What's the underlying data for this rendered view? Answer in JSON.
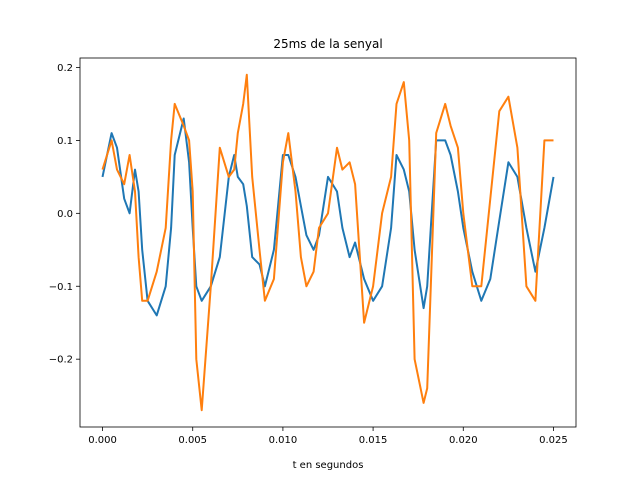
{
  "chart_data": {
    "type": "line",
    "title": "25ms de la senyal",
    "xlabel": "t en segundos",
    "ylabel": "",
    "xlim": [
      -0.00125,
      0.02625
    ],
    "ylim": [
      -0.293,
      0.213
    ],
    "x_ticks": [
      0.0,
      0.005,
      0.01,
      0.015,
      0.02,
      0.025
    ],
    "x_tick_labels": [
      "0.000",
      "0.005",
      "0.010",
      "0.015",
      "0.020",
      "0.025"
    ],
    "y_ticks": [
      -0.2,
      -0.1,
      0.0,
      0.1,
      0.2
    ],
    "y_tick_labels": [
      "−0.2",
      "−0.1",
      "0.0",
      "0.1",
      "0.2"
    ],
    "grid": false,
    "legend": "none",
    "series": [
      {
        "color": "#1f77b4",
        "x": [
          0.0,
          0.0005,
          0.0008,
          0.0012,
          0.0015,
          0.0018,
          0.002,
          0.0022,
          0.0025,
          0.003,
          0.0035,
          0.0038,
          0.004,
          0.0045,
          0.0048,
          0.005,
          0.0052,
          0.0055,
          0.006,
          0.0065,
          0.007,
          0.0073,
          0.0075,
          0.0078,
          0.008,
          0.0083,
          0.0087,
          0.009,
          0.0095,
          0.01,
          0.0103,
          0.0107,
          0.011,
          0.0113,
          0.0117,
          0.012,
          0.0125,
          0.013,
          0.0133,
          0.0137,
          0.014,
          0.0145,
          0.015,
          0.0155,
          0.016,
          0.0163,
          0.0167,
          0.017,
          0.0173,
          0.0178,
          0.018,
          0.0185,
          0.019,
          0.0193,
          0.0197,
          0.02,
          0.0205,
          0.021,
          0.0215,
          0.022,
          0.0225,
          0.023,
          0.0235,
          0.024,
          0.0245,
          0.025
        ],
        "values": [
          0.05,
          0.11,
          0.09,
          0.02,
          0.0,
          0.06,
          0.03,
          -0.05,
          -0.12,
          -0.14,
          -0.1,
          -0.02,
          0.08,
          0.13,
          0.07,
          -0.02,
          -0.1,
          -0.12,
          -0.1,
          -0.06,
          0.05,
          0.08,
          0.05,
          0.04,
          0.01,
          -0.06,
          -0.07,
          -0.1,
          -0.05,
          0.08,
          0.08,
          0.05,
          0.01,
          -0.03,
          -0.05,
          -0.03,
          0.05,
          0.03,
          -0.02,
          -0.06,
          -0.04,
          -0.09,
          -0.12,
          -0.1,
          -0.02,
          0.08,
          0.06,
          0.03,
          -0.05,
          -0.13,
          -0.1,
          0.1,
          0.1,
          0.08,
          0.03,
          -0.02,
          -0.08,
          -0.12,
          -0.09,
          -0.01,
          0.07,
          0.05,
          -0.02,
          -0.08,
          -0.02,
          0.05
        ]
      },
      {
        "color": "#ff7f0e",
        "x": [
          0.0,
          0.0005,
          0.0008,
          0.0012,
          0.0015,
          0.0018,
          0.002,
          0.0022,
          0.0025,
          0.003,
          0.0035,
          0.0038,
          0.004,
          0.0045,
          0.0048,
          0.005,
          0.0052,
          0.0055,
          0.006,
          0.0065,
          0.007,
          0.0073,
          0.0075,
          0.0078,
          0.008,
          0.0083,
          0.0087,
          0.009,
          0.0095,
          0.01,
          0.0103,
          0.0107,
          0.011,
          0.0113,
          0.0117,
          0.012,
          0.0125,
          0.013,
          0.0133,
          0.0137,
          0.014,
          0.0145,
          0.015,
          0.0155,
          0.016,
          0.0163,
          0.0167,
          0.017,
          0.0173,
          0.0178,
          0.018,
          0.0185,
          0.019,
          0.0193,
          0.0197,
          0.02,
          0.0205,
          0.021,
          0.0215,
          0.022,
          0.0225,
          0.023,
          0.0235,
          0.024,
          0.0245,
          0.025
        ],
        "values": [
          0.06,
          0.1,
          0.06,
          0.04,
          0.08,
          0.03,
          -0.06,
          -0.12,
          -0.12,
          -0.08,
          -0.02,
          0.1,
          0.15,
          0.12,
          0.1,
          0.03,
          -0.2,
          -0.27,
          -0.1,
          0.09,
          0.05,
          0.06,
          0.11,
          0.15,
          0.19,
          0.05,
          -0.05,
          -0.12,
          -0.09,
          0.07,
          0.11,
          0.03,
          -0.06,
          -0.1,
          -0.08,
          -0.02,
          0.0,
          0.09,
          0.06,
          0.07,
          0.04,
          -0.15,
          -0.1,
          0.0,
          0.05,
          0.15,
          0.18,
          0.1,
          -0.2,
          -0.26,
          -0.24,
          0.11,
          0.15,
          0.12,
          0.09,
          0.0,
          -0.1,
          -0.1,
          0.02,
          0.14,
          0.16,
          0.09,
          -0.1,
          -0.12,
          0.1,
          0.1
        ]
      }
    ]
  }
}
